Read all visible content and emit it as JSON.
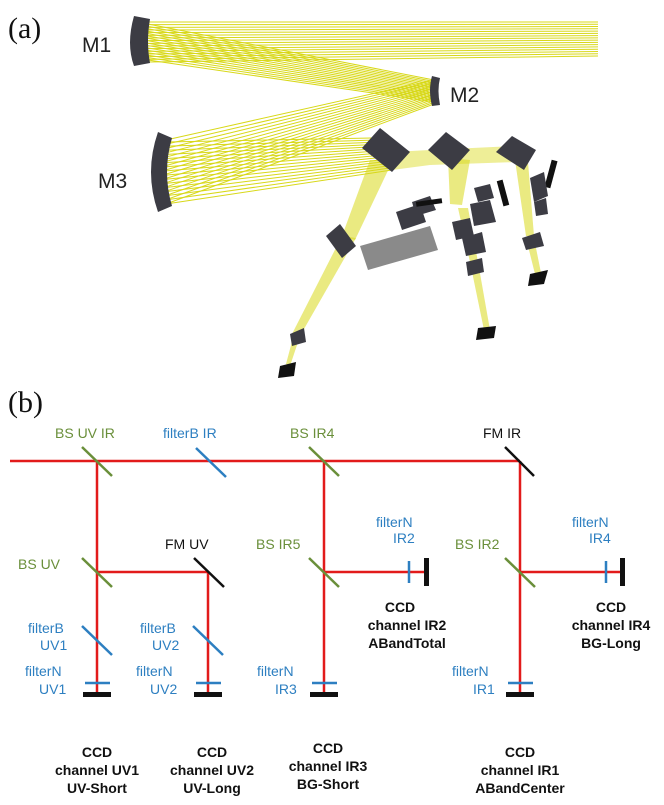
{
  "panel_a": {
    "label": "(a)",
    "mirrors": [
      "M1",
      "M2",
      "M3"
    ],
    "colors": {
      "rays": "#d4d400",
      "optics": "#3c3c44",
      "block": "#8a8a8a"
    }
  },
  "panel_b": {
    "label": "(b)",
    "colors": {
      "beam": "#e21b1b",
      "splitter": "#6a8f3a",
      "filter": "#2d7fc1",
      "fold_mirror": "#111111",
      "ccd": "#111111"
    },
    "beamsplitters": [
      "BS UV IR",
      "BS IR4",
      "BS UV",
      "BS IR5",
      "BS IR2"
    ],
    "fold_mirrors": [
      "FM IR",
      "FM UV"
    ],
    "filters": {
      "filterB_IR": "filterB IR",
      "filterN_IR2": [
        "filterN",
        "IR2"
      ],
      "filterN_IR4": [
        "filterN",
        "IR4"
      ],
      "filterB_UV1": [
        "filterB",
        "UV1"
      ],
      "filterB_UV2": [
        "filterB",
        "UV2"
      ],
      "filterN_UV1": [
        "filterN",
        "UV1"
      ],
      "filterN_UV2": [
        "filterN",
        "UV2"
      ],
      "filterN_IR3": [
        "filterN",
        "IR3"
      ],
      "filterN_IR1": [
        "filterN",
        "IR1"
      ]
    },
    "ccds": {
      "ir2": [
        "CCD",
        "channel IR2",
        "ABandTotal"
      ],
      "ir4": [
        "CCD",
        "channel IR4",
        "BG-Long"
      ],
      "uv1": [
        "CCD",
        "channel UV1",
        "UV-Short"
      ],
      "uv2": [
        "CCD",
        "channel UV2",
        "UV-Long"
      ],
      "ir3": [
        "CCD",
        "channel IR3",
        "BG-Short"
      ],
      "ir1": [
        "CCD",
        "channel IR1",
        "ABandCenter"
      ]
    }
  }
}
